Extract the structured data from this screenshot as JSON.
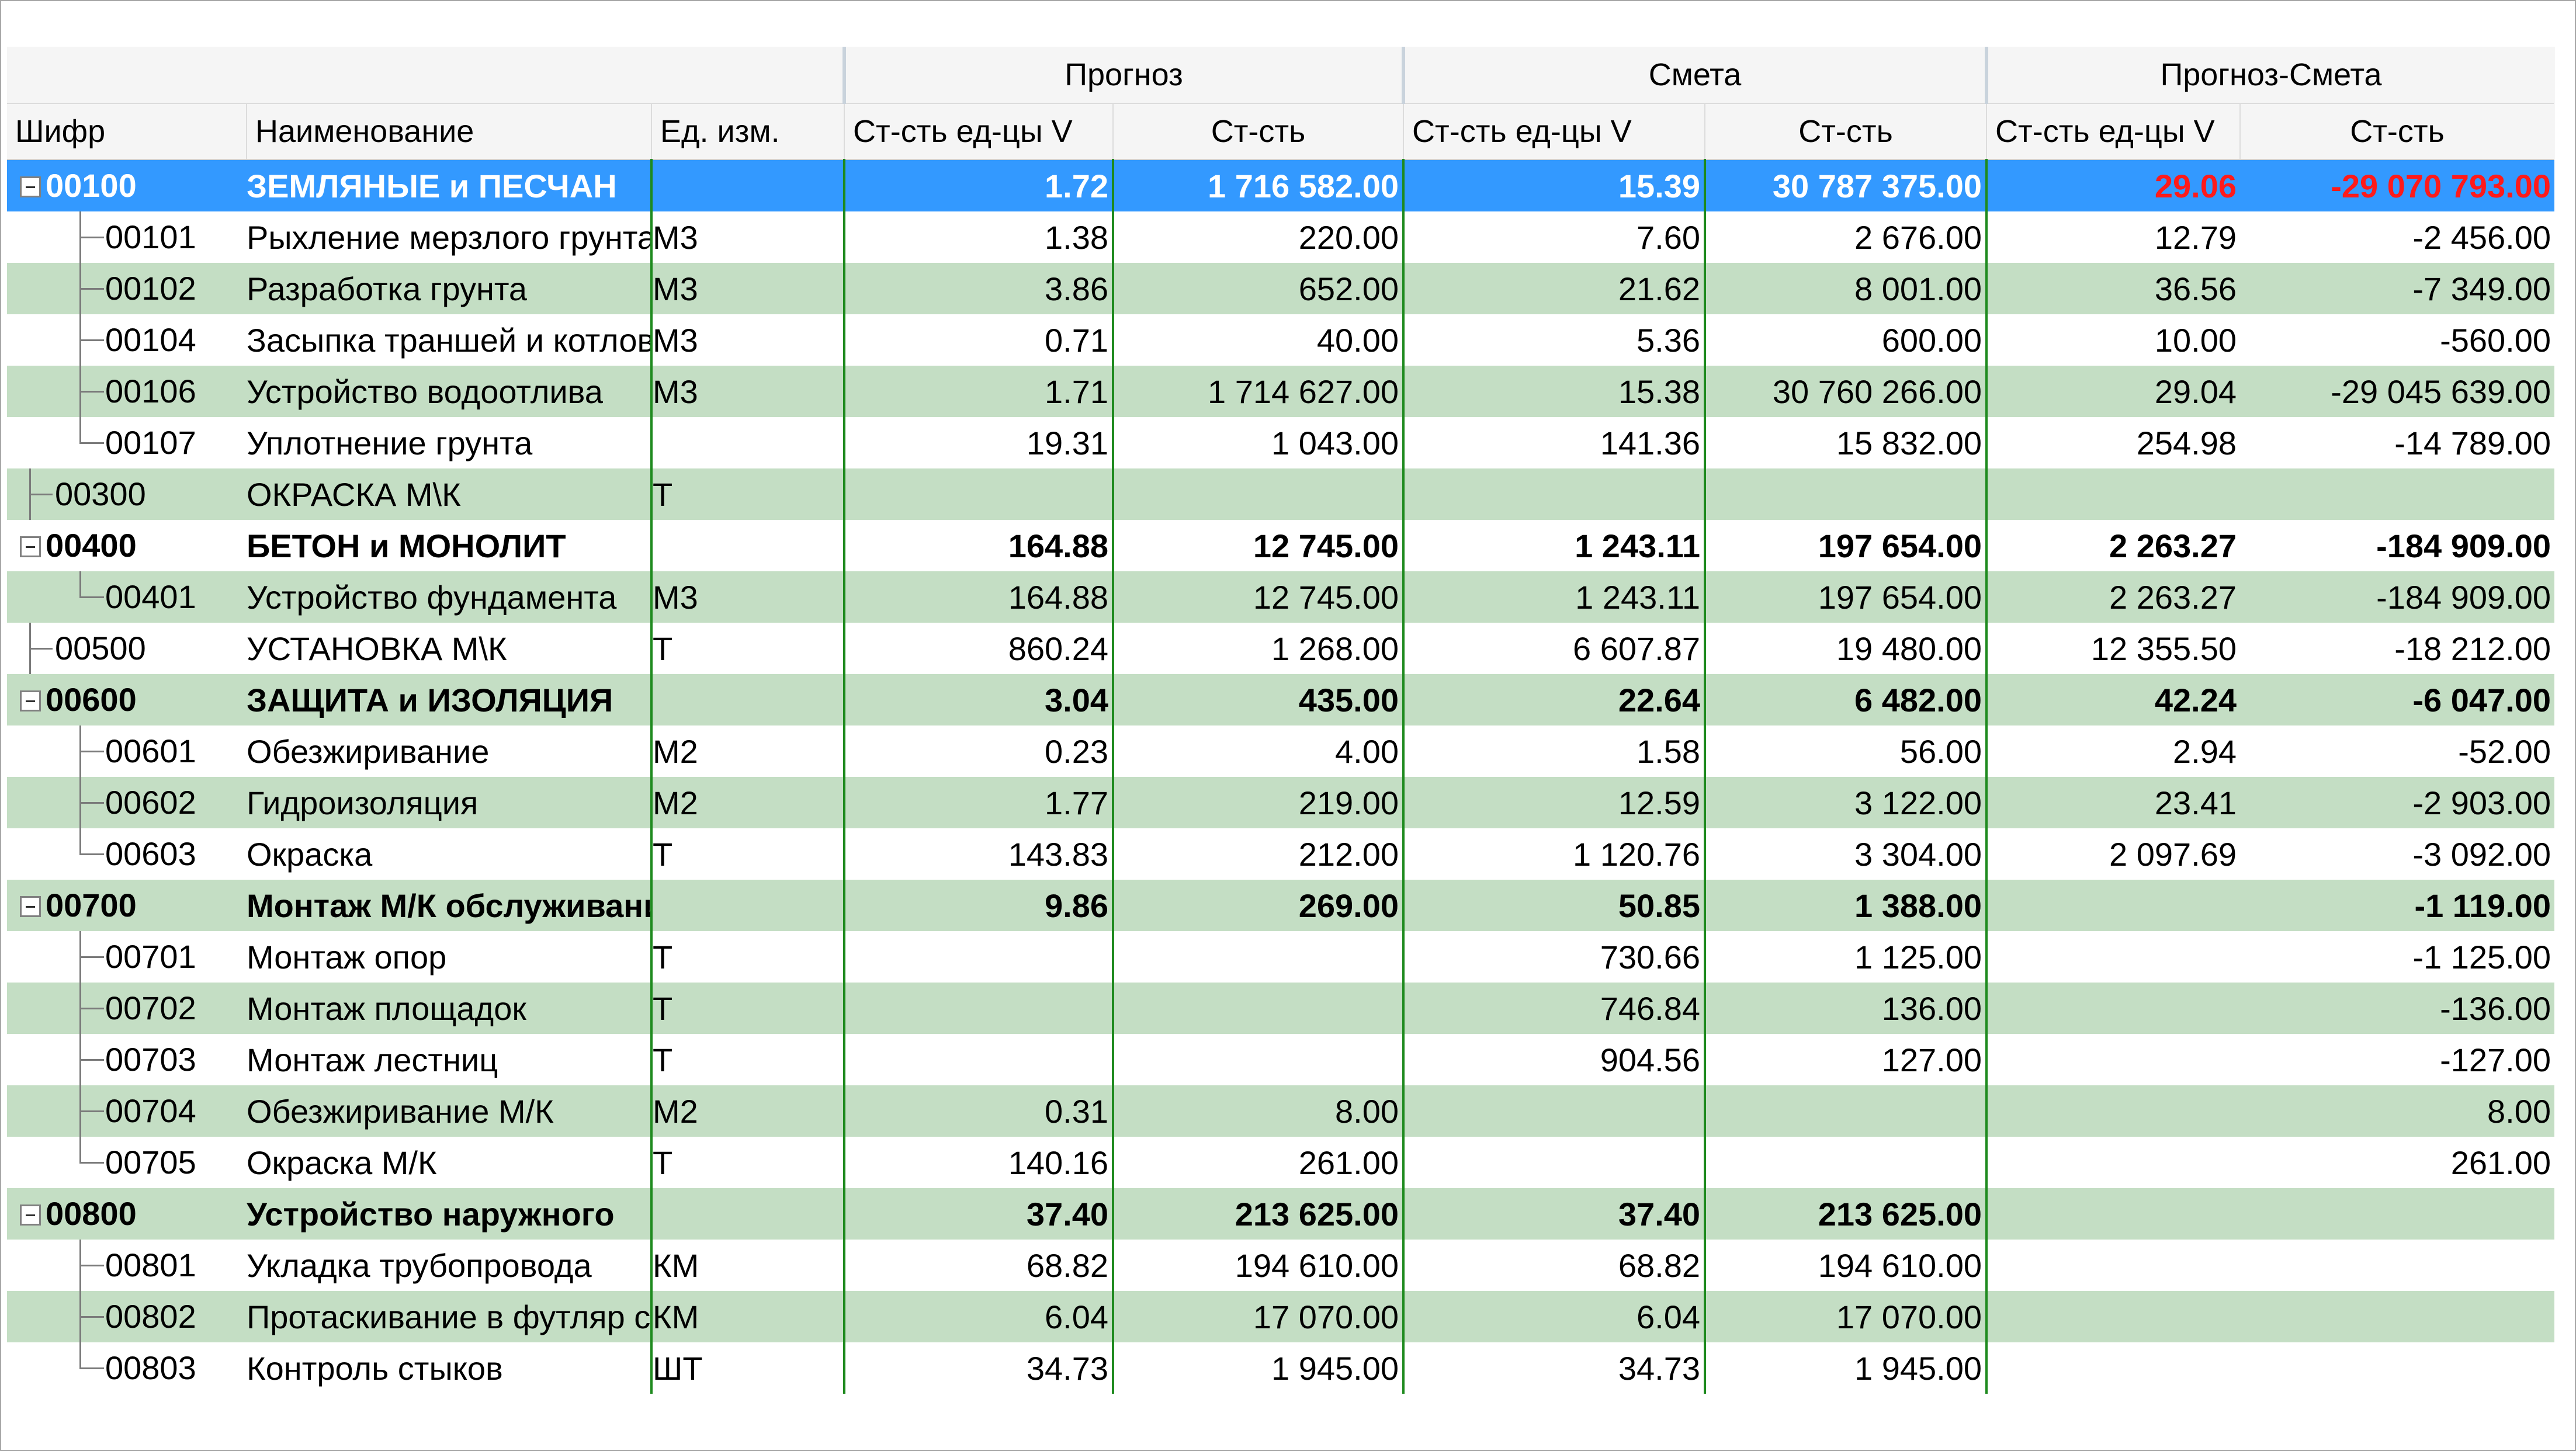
{
  "groups": {
    "forecast": "Прогноз",
    "estimate": "Смета",
    "diff": "Прогноз-Смета"
  },
  "columns": {
    "code": "Шифр",
    "name": "Наименование",
    "unit": "Ед. изм.",
    "f_unit": "Ст-сть ед-цы V",
    "f_cost": "Ст-сть",
    "e_unit": "Ст-сть ед-цы V",
    "e_cost": "Ст-сть",
    "d_unit": "Ст-сть ед-цы V",
    "d_cost": "Ст-сть"
  },
  "rows": [
    {
      "code": "00100",
      "name": "ЗЕМЛЯНЫЕ и ПЕСЧАН",
      "unit": "",
      "f_unit": "1.72",
      "f_cost": "1 716 582.00",
      "e_unit": "15.39",
      "e_cost": "30 787 375.00",
      "d_unit": "29.06",
      "d_cost": "-29 070 793.00"
    },
    {
      "code": "00101",
      "name": "Рыхление мерзлого грунта",
      "unit": "М3",
      "f_unit": "1.38",
      "f_cost": "220.00",
      "e_unit": "7.60",
      "e_cost": "2 676.00",
      "d_unit": "12.79",
      "d_cost": "-2 456.00"
    },
    {
      "code": "00102",
      "name": "Разработка грунта",
      "unit": "М3",
      "f_unit": "3.86",
      "f_cost": "652.00",
      "e_unit": "21.62",
      "e_cost": "8 001.00",
      "d_unit": "36.56",
      "d_cost": "-7 349.00"
    },
    {
      "code": "00104",
      "name": "Засыпка траншей и котлованов",
      "unit": "М3",
      "f_unit": "0.71",
      "f_cost": "40.00",
      "e_unit": "5.36",
      "e_cost": "600.00",
      "d_unit": "10.00",
      "d_cost": "-560.00"
    },
    {
      "code": "00106",
      "name": "Устройство водоотлива",
      "unit": "М3",
      "f_unit": "1.71",
      "f_cost": "1 714 627.00",
      "e_unit": "15.38",
      "e_cost": "30 760 266.00",
      "d_unit": "29.04",
      "d_cost": "-29 045 639.00"
    },
    {
      "code": "00107",
      "name": "Уплотнение грунта",
      "unit": "",
      "f_unit": "19.31",
      "f_cost": "1 043.00",
      "e_unit": "141.36",
      "e_cost": "15 832.00",
      "d_unit": "254.98",
      "d_cost": "-14 789.00"
    },
    {
      "code": "00300",
      "name": "ОКРАСКА М\\К",
      "unit": "Т",
      "f_unit": "",
      "f_cost": "",
      "e_unit": "",
      "e_cost": "",
      "d_unit": "",
      "d_cost": ""
    },
    {
      "code": "00400",
      "name": "БЕТОН и МОНОЛИТ",
      "unit": "",
      "f_unit": "164.88",
      "f_cost": "12 745.00",
      "e_unit": "1 243.11",
      "e_cost": "197 654.00",
      "d_unit": "2 263.27",
      "d_cost": "-184 909.00"
    },
    {
      "code": "00401",
      "name": "Устройство фундамента",
      "unit": "М3",
      "f_unit": "164.88",
      "f_cost": "12 745.00",
      "e_unit": "1 243.11",
      "e_cost": "197 654.00",
      "d_unit": "2 263.27",
      "d_cost": "-184 909.00"
    },
    {
      "code": "00500",
      "name": "УСТАНОВКА М\\К",
      "unit": "Т",
      "f_unit": "860.24",
      "f_cost": "1 268.00",
      "e_unit": "6 607.87",
      "e_cost": "19 480.00",
      "d_unit": "12 355.50",
      "d_cost": "-18 212.00"
    },
    {
      "code": "00600",
      "name": "ЗАЩИТА и ИЗОЛЯЦИЯ",
      "unit": "",
      "f_unit": "3.04",
      "f_cost": "435.00",
      "e_unit": "22.64",
      "e_cost": "6 482.00",
      "d_unit": "42.24",
      "d_cost": "-6 047.00"
    },
    {
      "code": "00601",
      "name": "Обезжиривание",
      "unit": "М2",
      "f_unit": "0.23",
      "f_cost": "4.00",
      "e_unit": "1.58",
      "e_cost": "56.00",
      "d_unit": "2.94",
      "d_cost": "-52.00"
    },
    {
      "code": "00602",
      "name": "Гидроизоляция",
      "unit": "М2",
      "f_unit": "1.77",
      "f_cost": "219.00",
      "e_unit": "12.59",
      "e_cost": "3 122.00",
      "d_unit": "23.41",
      "d_cost": "-2 903.00"
    },
    {
      "code": "00603",
      "name": "Окраска",
      "unit": "Т",
      "f_unit": "143.83",
      "f_cost": "212.00",
      "e_unit": "1 120.76",
      "e_cost": "3 304.00",
      "d_unit": "2 097.69",
      "d_cost": "-3 092.00"
    },
    {
      "code": "00700",
      "name": "Монтаж М/К обслуживания",
      "unit": "",
      "f_unit": "9.86",
      "f_cost": "269.00",
      "e_unit": "50.85",
      "e_cost": "1 388.00",
      "d_unit": "",
      "d_cost": "-1 119.00"
    },
    {
      "code": "00701",
      "name": "Монтаж опор",
      "unit": "Т",
      "f_unit": "",
      "f_cost": "",
      "e_unit": "730.66",
      "e_cost": "1 125.00",
      "d_unit": "",
      "d_cost": "-1 125.00"
    },
    {
      "code": "00702",
      "name": "Монтаж площадок",
      "unit": "Т",
      "f_unit": "",
      "f_cost": "",
      "e_unit": "746.84",
      "e_cost": "136.00",
      "d_unit": "",
      "d_cost": "-136.00"
    },
    {
      "code": "00703",
      "name": "Монтаж лестниц",
      "unit": "Т",
      "f_unit": "",
      "f_cost": "",
      "e_unit": "904.56",
      "e_cost": "127.00",
      "d_unit": "",
      "d_cost": "-127.00"
    },
    {
      "code": "00704",
      "name": "Обезжиривание М/К",
      "unit": "М2",
      "f_unit": "0.31",
      "f_cost": "8.00",
      "e_unit": "",
      "e_cost": "",
      "d_unit": "",
      "d_cost": "8.00"
    },
    {
      "code": "00705",
      "name": "Окраска М/К",
      "unit": "Т",
      "f_unit": "140.16",
      "f_cost": "261.00",
      "e_unit": "",
      "e_cost": "",
      "d_unit": "",
      "d_cost": "261.00"
    },
    {
      "code": "00800",
      "name": "Устройство наружного",
      "unit": "",
      "f_unit": "37.40",
      "f_cost": "213 625.00",
      "e_unit": "37.40",
      "e_cost": "213 625.00",
      "d_unit": "",
      "d_cost": ""
    },
    {
      "code": "00801",
      "name": "Укладка трубопровода",
      "unit": "КМ",
      "f_unit": "68.82",
      "f_cost": "194 610.00",
      "e_unit": "68.82",
      "e_cost": "194 610.00",
      "d_unit": "",
      "d_cost": ""
    },
    {
      "code": "00802",
      "name": "Протаскивание в футляр скважины",
      "unit": "КМ",
      "f_unit": "6.04",
      "f_cost": "17 070.00",
      "e_unit": "6.04",
      "e_cost": "17 070.00",
      "d_unit": "",
      "d_cost": ""
    },
    {
      "code": "00803",
      "name": "Контроль стыков",
      "unit": "ШТ",
      "f_unit": "34.73",
      "f_cost": "1 945.00",
      "e_unit": "34.73",
      "e_cost": "1 945.00",
      "d_unit": "",
      "d_cost": ""
    }
  ]
}
